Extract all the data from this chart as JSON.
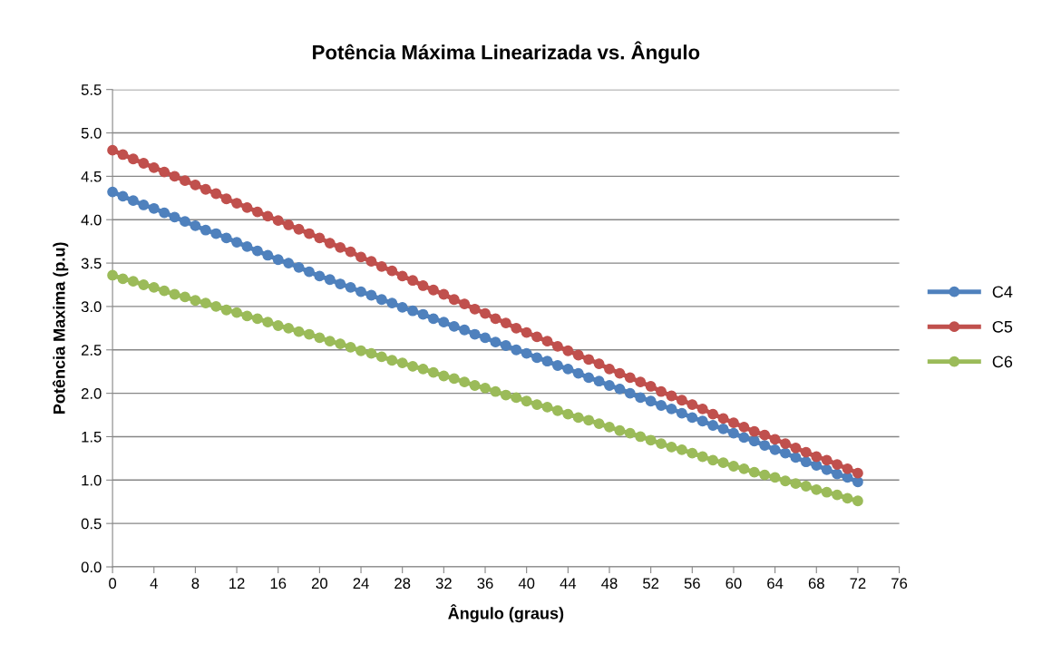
{
  "chart_data": {
    "type": "line",
    "title": "Potência Máxima Linearizada vs. Ângulo",
    "xlabel": "Ângulo (graus)",
    "ylabel": "Potência Maxima (p.u)",
    "x": [
      0,
      1,
      2,
      3,
      4,
      5,
      6,
      7,
      8,
      9,
      10,
      11,
      12,
      13,
      14,
      15,
      16,
      17,
      18,
      19,
      20,
      21,
      22,
      23,
      24,
      25,
      26,
      27,
      28,
      29,
      30,
      31,
      32,
      33,
      34,
      35,
      36,
      37,
      38,
      39,
      40,
      41,
      42,
      43,
      44,
      45,
      46,
      47,
      48,
      49,
      50,
      51,
      52,
      53,
      54,
      55,
      56,
      57,
      58,
      59,
      60,
      61,
      62,
      63,
      64,
      65,
      66,
      67,
      68,
      69,
      70,
      71,
      72
    ],
    "series": [
      {
        "name": "C4",
        "color": "#4f81bd",
        "values": [
          4.32,
          4.27,
          4.22,
          4.17,
          4.13,
          4.08,
          4.03,
          3.98,
          3.93,
          3.88,
          3.84,
          3.79,
          3.74,
          3.69,
          3.64,
          3.59,
          3.54,
          3.5,
          3.45,
          3.4,
          3.35,
          3.31,
          3.26,
          3.22,
          3.17,
          3.13,
          3.08,
          3.04,
          2.99,
          2.95,
          2.91,
          2.86,
          2.82,
          2.77,
          2.73,
          2.68,
          2.64,
          2.59,
          2.55,
          2.5,
          2.46,
          2.41,
          2.37,
          2.32,
          2.28,
          2.23,
          2.18,
          2.14,
          2.09,
          2.05,
          2.0,
          1.95,
          1.91,
          1.86,
          1.82,
          1.77,
          1.72,
          1.68,
          1.63,
          1.59,
          1.54,
          1.49,
          1.45,
          1.4,
          1.35,
          1.31,
          1.26,
          1.21,
          1.17,
          1.12,
          1.07,
          1.03,
          0.98
        ]
      },
      {
        "name": "C5",
        "color": "#c0504d",
        "values": [
          4.8,
          4.75,
          4.7,
          4.65,
          4.6,
          4.55,
          4.5,
          4.45,
          4.4,
          4.35,
          4.3,
          4.24,
          4.19,
          4.14,
          4.09,
          4.04,
          3.99,
          3.94,
          3.89,
          3.84,
          3.79,
          3.73,
          3.68,
          3.63,
          3.57,
          3.52,
          3.46,
          3.41,
          3.35,
          3.3,
          3.24,
          3.19,
          3.14,
          3.08,
          3.03,
          2.97,
          2.92,
          2.86,
          2.81,
          2.75,
          2.7,
          2.65,
          2.6,
          2.54,
          2.49,
          2.44,
          2.39,
          2.34,
          2.28,
          2.23,
          2.18,
          2.13,
          2.08,
          2.02,
          1.97,
          1.92,
          1.87,
          1.82,
          1.76,
          1.71,
          1.66,
          1.61,
          1.56,
          1.52,
          1.47,
          1.42,
          1.37,
          1.32,
          1.27,
          1.23,
          1.18,
          1.13,
          1.08
        ]
      },
      {
        "name": "C6",
        "color": "#9bbb59",
        "values": [
          3.36,
          3.32,
          3.29,
          3.25,
          3.22,
          3.18,
          3.14,
          3.11,
          3.07,
          3.04,
          3.0,
          2.96,
          2.93,
          2.89,
          2.86,
          2.82,
          2.78,
          2.75,
          2.71,
          2.68,
          2.64,
          2.6,
          2.57,
          2.53,
          2.49,
          2.46,
          2.42,
          2.38,
          2.35,
          2.31,
          2.28,
          2.24,
          2.2,
          2.17,
          2.13,
          2.09,
          2.06,
          2.02,
          1.98,
          1.95,
          1.91,
          1.87,
          1.84,
          1.8,
          1.76,
          1.72,
          1.69,
          1.65,
          1.61,
          1.57,
          1.54,
          1.5,
          1.46,
          1.42,
          1.38,
          1.35,
          1.31,
          1.27,
          1.23,
          1.2,
          1.16,
          1.13,
          1.09,
          1.06,
          1.03,
          0.99,
          0.96,
          0.93,
          0.89,
          0.86,
          0.83,
          0.79,
          0.76
        ]
      }
    ],
    "xlim": [
      0,
      76
    ],
    "xticks": [
      0,
      4,
      8,
      12,
      16,
      20,
      24,
      28,
      32,
      36,
      40,
      44,
      48,
      52,
      56,
      60,
      64,
      68,
      72,
      76
    ],
    "ylim": [
      0,
      5.5
    ],
    "yticks": [
      {
        "value": 0,
        "label": "0.0"
      },
      {
        "value": 0.5,
        "label": "0.5"
      },
      {
        "value": 1,
        "label": "1.0"
      },
      {
        "value": 1.5,
        "label": "1.5"
      },
      {
        "value": 2,
        "label": "2.0"
      },
      {
        "value": 2.5,
        "label": "2.5"
      },
      {
        "value": 3,
        "label": "3.0"
      },
      {
        "value": 3.5,
        "label": "3.5"
      },
      {
        "value": 4,
        "label": "4.0"
      },
      {
        "value": 4.5,
        "label": "4.5"
      },
      {
        "value": 5,
        "label": "5.0"
      },
      {
        "value": 5.5,
        "label": "5.5"
      }
    ],
    "grid": "y",
    "legend": "right",
    "marker": "circle",
    "line_style": "solid"
  }
}
